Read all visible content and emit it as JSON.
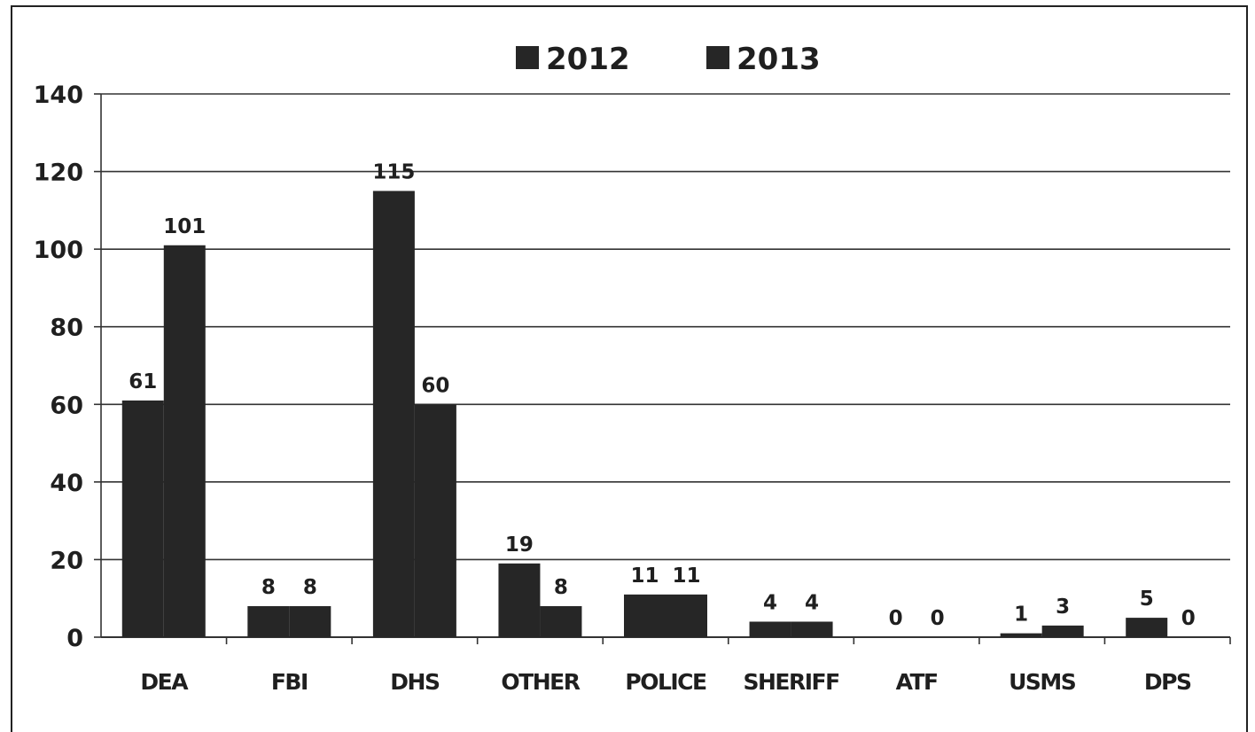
{
  "chart_data": {
    "type": "bar",
    "categories": [
      "DEA",
      "FBI",
      "DHS",
      "OTHER",
      "POLICE",
      "SHERIFF",
      "ATF",
      "USMS",
      "DPS"
    ],
    "series": [
      {
        "name": "2012",
        "values": [
          61,
          8,
          115,
          19,
          11,
          4,
          0,
          1,
          5
        ]
      },
      {
        "name": "2013",
        "values": [
          101,
          8,
          60,
          8,
          11,
          4,
          0,
          3,
          0
        ]
      }
    ],
    "ylim": [
      0,
      140
    ],
    "yticks": [
      0,
      20,
      40,
      60,
      80,
      100,
      120,
      140
    ],
    "grid": true,
    "legend_position": "top",
    "colors": {
      "series": [
        "#262626",
        "#262626"
      ],
      "grid": "#333333",
      "text": "#1f1f1f"
    }
  }
}
